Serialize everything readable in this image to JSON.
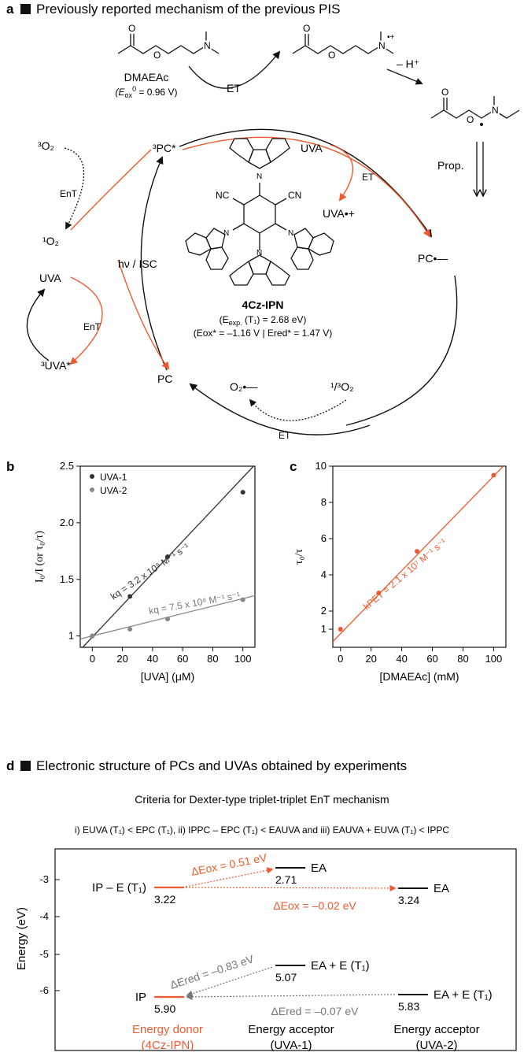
{
  "panel_a": {
    "letter": "a",
    "title": "Previously reported mechanism of the previous PIS",
    "dmaeac": "DMAEAc",
    "dmaeac_eox": "(E",
    "dmaeac_eox_sub": "ox",
    "dmaeac_eox_sup": "0",
    "dmaeac_eox_val": " = 0.96 V)",
    "et": "ET",
    "minus_h": "– H⁺",
    "prop": "Prop.",
    "pc_star": "³PC*",
    "o2_triplet": "³O₂",
    "o2_singlet": "¹O₂",
    "ent": "EnT",
    "uva": "UVA",
    "uva_triplet": "³UVA*",
    "uva_radical": "UVA•+",
    "hv_isc": "hν / ISC",
    "pc": "PC",
    "pc_radical": "PC•—",
    "superoxide": "O₂•—",
    "o2_13": "¹/³O₂",
    "cz_name": "4Cz-IPN",
    "cz_texp_pre": "(E",
    "cz_texp_sub": "exp.",
    "cz_texp_val": " (T₁) = 2.68 eV)",
    "cz_redox": "(Eox* = –1.16 V | Ered* = 1.47 V)",
    "nc": "NC",
    "cn": "CN"
  },
  "panel_b": {
    "letter": "b",
    "legend": [
      "UVA-1",
      "UVA-2"
    ],
    "ylabel": "I₀/I (or τ₀/τ)",
    "xlabel": "[UVA] (μM)",
    "kq1_label": "kq = 3.2 x 10⁹ M⁻¹ s⁻¹",
    "kq2_label": "kq = 7.5 x 10⁸ M⁻¹ s⁻¹"
  },
  "panel_c": {
    "letter": "c",
    "ylabel": "τ₀/τ",
    "xlabel": "[DMAEAc] (mM)",
    "kpet_label": "kPET = 2.1 x 10⁷ M⁻¹ s⁻¹"
  },
  "panel_d": {
    "letter": "d",
    "title": "Electronic structure of PCs and UVAs obtained by experiments",
    "criteria_title": "Criteria for Dexter-type triplet-triplet EnT mechanism",
    "criteria": "i) EUVA (T₁) < EPC (T₁), ii) IPPC – EPC (T₁) < EAUVA and iii) EAUVA + EUVA (T₁) < IPPC",
    "ylabel": "Energy (eV)",
    "ip_e_t1": "IP – E (T₁)",
    "ea": "EA",
    "ea_e_t1": "EA + E (T₁)",
    "ip": "IP",
    "delta_eox_1": "ΔEox = 0.51 eV",
    "delta_eox_2": "ΔEox = –0.02 eV",
    "delta_ered_1": "ΔEred = –0.83 eV",
    "delta_ered_2": "ΔEred = –0.07 eV",
    "v_322": "3.22",
    "v_271": "2.71",
    "v_324": "3.24",
    "v_507": "5.07",
    "v_590": "5.90",
    "v_583": "5.83",
    "donor": "Energy donor",
    "donor_sub": "(4Cz-IPN)",
    "acceptor": "Energy acceptor",
    "acceptor1_sub": "(UVA-1)",
    "acceptor2_sub": "(UVA-2)"
  },
  "chart_data": [
    {
      "type": "scatter",
      "xlabel": "[UVA] (μM)",
      "ylabel": "I₀/I (or τ₀/τ)",
      "xlim": [
        -8,
        108
      ],
      "ylim": [
        0.9,
        2.5
      ],
      "xticks": [
        0,
        20,
        40,
        60,
        80,
        100
      ],
      "yticks": [
        1,
        1.5,
        2.0,
        2.5
      ],
      "ytick_labels": [
        "1",
        "1.5",
        "2.0",
        "2.5"
      ],
      "legend_position": "top-left",
      "series": [
        {
          "name": "UVA-1",
          "color": "#333333",
          "x": [
            0,
            25,
            50,
            100
          ],
          "y": [
            1.0,
            1.35,
            1.7,
            2.27
          ],
          "fit": {
            "slope": 0.0141,
            "intercept": 0.99
          }
        },
        {
          "name": "UVA-2",
          "color": "#888888",
          "x": [
            0,
            25,
            50,
            100
          ],
          "y": [
            1.0,
            1.06,
            1.15,
            1.32
          ],
          "fit": {
            "slope": 0.0033,
            "intercept": 1.0
          }
        }
      ]
    },
    {
      "type": "scatter",
      "xlabel": "[DMAEAc] (mM)",
      "ylabel": "τ₀/τ",
      "xlim": [
        -5,
        108
      ],
      "ylim": [
        0,
        10
      ],
      "xticks": [
        0,
        20,
        40,
        60,
        80,
        100
      ],
      "yticks": [
        1,
        2,
        4,
        6,
        8,
        10
      ],
      "series": [
        {
          "name": "",
          "color": "#ee5a2f",
          "x": [
            0,
            25,
            50,
            100
          ],
          "y": [
            1.0,
            3.0,
            5.3,
            9.5
          ],
          "fit": {
            "slope": 0.087,
            "intercept": 0.75
          }
        }
      ]
    }
  ]
}
